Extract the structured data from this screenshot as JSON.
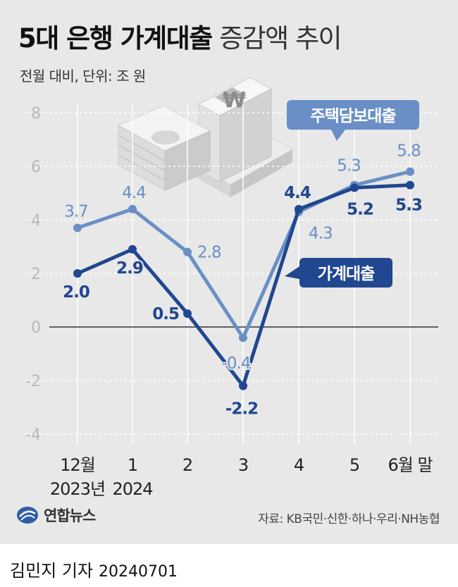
{
  "title": {
    "bold": "5대 은행 가계대출",
    "light": "증감액 추이"
  },
  "subtitle": "전월 대비, 단위: 조 원",
  "source": "자료: KB국민·신한·하나·우리·NH농협",
  "logo_text": "연합뉴스",
  "byline": {
    "name": "김민지 기자",
    "date": "20240701"
  },
  "colors": {
    "light_series": "#6a8fc6",
    "dark_series": "#20478f",
    "panel": "#e8e8e8"
  },
  "chart_data": {
    "type": "line",
    "title": "5대 은행 가계대출 증감액 추이",
    "ylabel": "전월 대비, 단위: 조 원",
    "ylim": [
      -4,
      8
    ],
    "yticks": [
      "8",
      "6",
      "4",
      "2",
      "0",
      "-2",
      "-4"
    ],
    "categories": [
      {
        "top": "12월",
        "bottom": "2023년"
      },
      {
        "top": "1",
        "bottom": "2024"
      },
      {
        "top": "2",
        "bottom": ""
      },
      {
        "top": "3",
        "bottom": ""
      },
      {
        "top": "4",
        "bottom": ""
      },
      {
        "top": "5",
        "bottom": ""
      },
      {
        "top": "6월 말",
        "bottom": ""
      }
    ],
    "series": [
      {
        "name": "주택담보대출",
        "values": [
          3.7,
          4.4,
          2.8,
          -0.4,
          4.3,
          5.3,
          5.8
        ],
        "labels": [
          "3.7",
          "4.4",
          "2.8",
          "-0.4",
          "4.3",
          "5.3",
          "5.8"
        ]
      },
      {
        "name": "가계대출",
        "values": [
          2.0,
          2.9,
          0.5,
          -2.2,
          4.4,
          5.2,
          5.3
        ],
        "labels": [
          "2.0",
          "2.9",
          "0.5",
          "-2.2",
          "4.4",
          "5.2",
          "5.3"
        ]
      }
    ]
  }
}
